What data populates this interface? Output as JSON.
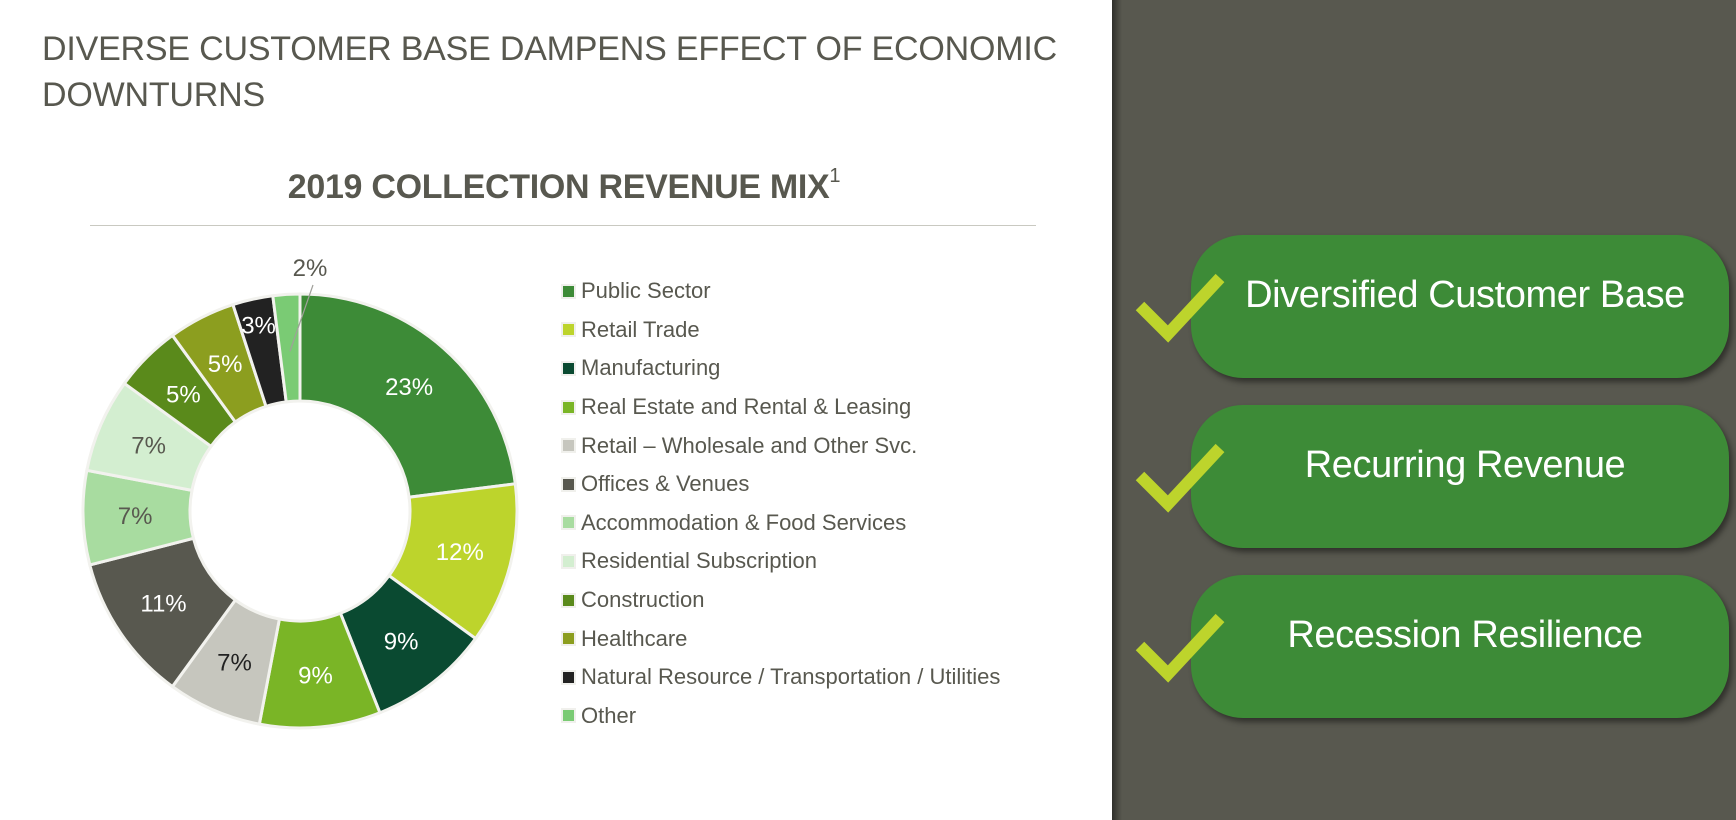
{
  "slide": {
    "title": "DIVERSE CUSTOMER BASE DAMPENS EFFECT OF ECONOMIC DOWNTURNS"
  },
  "chart_title": {
    "text": "2019 COLLECTION REVENUE MIX",
    "footnote_marker": "1"
  },
  "chart_data": {
    "type": "pie",
    "variant": "donut",
    "title": "2019 COLLECTION REVENUE MIX",
    "start_angle": "12 o'clock, clockwise",
    "categories": [
      "Public Sector",
      "Retail Trade",
      "Manufacturing",
      "Real Estate and Rental & Leasing",
      "Retail – Wholesale and Other Svc.",
      "Offices & Venues",
      "Accommodation & Food Services",
      "Residential Subscription",
      "Construction",
      "Healthcare",
      "Natural Resource / Transportation  / Utilities",
      "Other"
    ],
    "values": [
      23,
      12,
      9,
      9,
      7,
      11,
      7,
      7,
      5,
      5,
      3,
      2
    ],
    "labels": [
      "23%",
      "12%",
      "9%",
      "9%",
      "7%",
      "11%",
      "7%",
      "7%",
      "5%",
      "5%",
      "3%",
      "2%"
    ],
    "colors": [
      "#3d8b37",
      "#bdd42c",
      "#0a4a31",
      "#7ab526",
      "#c6c6be",
      "#58584f",
      "#a8dca0",
      "#d3eed0",
      "#5a8a1b",
      "#8c9e1f",
      "#222222",
      "#7acb74"
    ],
    "label_colors": [
      "#ffffff",
      "#ffffff",
      "#ffffff",
      "#ffffff",
      "#222222",
      "#ffffff",
      "#58584f",
      "#58584f",
      "#ffffff",
      "#ffffff",
      "#ffffff",
      "#58584f"
    ],
    "legend_position": "right",
    "units": "%"
  },
  "legend": {
    "items": [
      {
        "label": "Public Sector",
        "color": "#3d8b37"
      },
      {
        "label": "Retail Trade",
        "color": "#bdd42c"
      },
      {
        "label": "Manufacturing",
        "color": "#0a4a31"
      },
      {
        "label": "Real Estate and Rental & Leasing",
        "color": "#7ab526"
      },
      {
        "label": "Retail – Wholesale and Other Svc.",
        "color": "#c6c6be"
      },
      {
        "label": "Offices & Venues",
        "color": "#58584f"
      },
      {
        "label": "Accommodation & Food Services",
        "color": "#a8dca0"
      },
      {
        "label": "Residential Subscription",
        "color": "#d3eed0"
      },
      {
        "label": "Construction",
        "color": "#5a8a1b"
      },
      {
        "label": "Healthcare",
        "color": "#8c9e1f"
      },
      {
        "label": "Natural Resource / Transportation  / Utilities",
        "color": "#222222"
      },
      {
        "label": "Other",
        "color": "#7acb74"
      }
    ]
  },
  "highlights": {
    "items": [
      {
        "label": "Diversified Customer Base",
        "icon": "checkmark-icon"
      },
      {
        "label": "Recurring Revenue",
        "icon": "checkmark-icon"
      },
      {
        "label": "Recession Resilience",
        "icon": "checkmark-icon"
      }
    ]
  },
  "colors": {
    "text_gray": "#58584f",
    "panel_bg": "#58584f",
    "pill_green": "#3d8b37",
    "check_lime": "#bdd42c"
  }
}
